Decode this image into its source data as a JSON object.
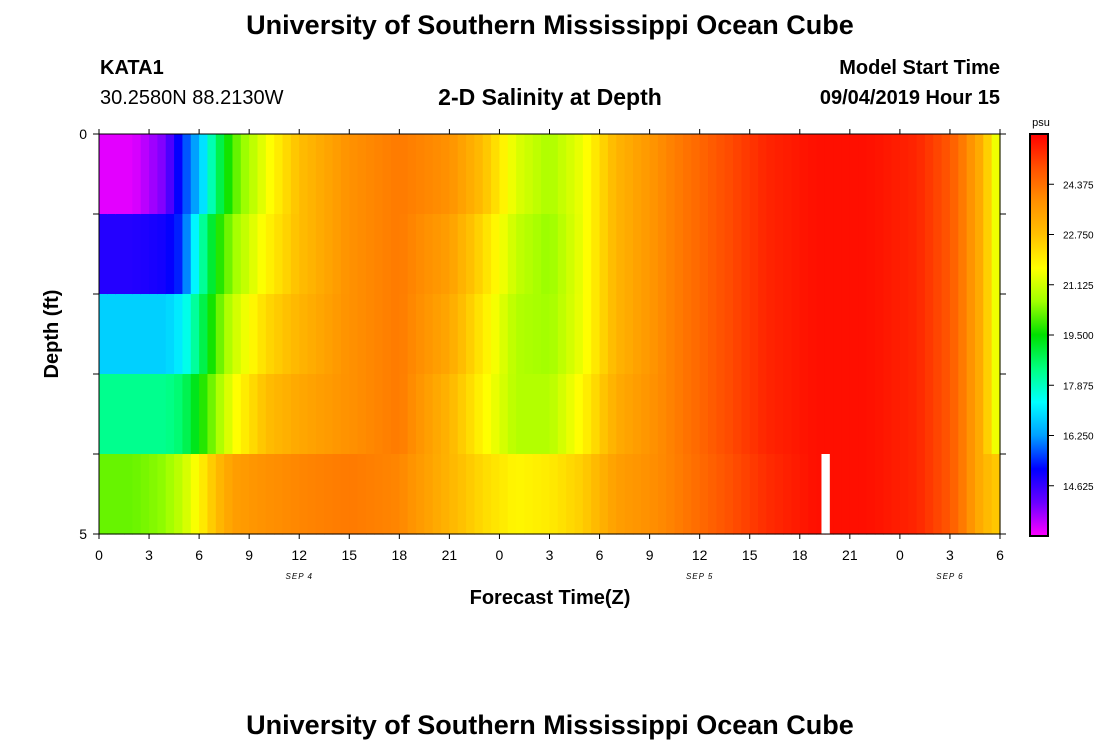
{
  "header": {
    "title": "University of Southern Mississippi Ocean Cube",
    "station_id": "KATA1",
    "coordinates": "30.2580N 88.2130W",
    "plot_title": "2-D Salinity at Depth",
    "model_label": "Model Start Time",
    "model_time": "09/04/2019 Hour 15"
  },
  "footer": {
    "title": "University of Southern Mississippi Ocean Cube"
  },
  "chart_data": {
    "type": "heatmap",
    "xlabel": "Forecast Time(Z)",
    "ylabel": "Depth (ft)",
    "x_tick_labels": [
      "0",
      "3",
      "6",
      "9",
      "12",
      "15",
      "18",
      "21",
      "0",
      "3",
      "6",
      "9",
      "12",
      "15",
      "18",
      "21",
      "0",
      "3",
      "6"
    ],
    "x_hours": [
      0,
      3,
      6,
      9,
      12,
      15,
      18,
      21,
      24,
      27,
      30,
      33,
      36,
      39,
      42,
      45,
      48,
      51,
      54
    ],
    "date_labels": [
      {
        "label": "SEP 4",
        "hour": 12
      },
      {
        "label": "SEP 5",
        "hour": 36
      },
      {
        "label": "SEP 6",
        "hour": 51
      }
    ],
    "y_tick_labels": [
      "0",
      "5"
    ],
    "ylim": [
      0,
      5
    ],
    "depth_layers": 5,
    "colorbar": {
      "unit": "psu",
      "range": [
        13.0,
        26.0
      ],
      "tick_labels": [
        "14.625",
        "16.250",
        "17.875",
        "19.500",
        "21.125",
        "22.750",
        "24.375"
      ],
      "colors": [
        "#ff00ff",
        "#6a00ff",
        "#0000ff",
        "#00a0ff",
        "#00ffff",
        "#00ff80",
        "#00e000",
        "#a0ff00",
        "#ffff00",
        "#ffc000",
        "#ff9000",
        "#ff5000",
        "#ff0000"
      ]
    },
    "series": [
      {
        "hour": 0,
        "values": [
          13.2,
          14.8,
          16.8,
          18.3,
          20.2
        ]
      },
      {
        "hour": 2,
        "values": [
          13.2,
          14.8,
          16.8,
          18.3,
          20.2
        ]
      },
      {
        "hour": 4,
        "values": [
          14.0,
          15.0,
          16.8,
          18.3,
          20.5
        ]
      },
      {
        "hour": 5,
        "values": [
          15.5,
          15.5,
          17.2,
          18.6,
          21.0
        ]
      },
      {
        "hour": 6,
        "values": [
          16.5,
          17.8,
          18.5,
          19.5,
          21.8
        ]
      },
      {
        "hour": 7,
        "values": [
          18.5,
          19.5,
          20.0,
          20.5,
          22.8
        ]
      },
      {
        "hour": 8,
        "values": [
          20.0,
          20.5,
          21.0,
          21.5,
          23.5
        ]
      },
      {
        "hour": 10,
        "values": [
          21.5,
          21.8,
          22.3,
          22.8,
          23.8
        ]
      },
      {
        "hour": 12,
        "values": [
          22.8,
          22.8,
          23.0,
          23.3,
          24.0
        ]
      },
      {
        "hour": 15,
        "values": [
          23.8,
          23.8,
          23.8,
          23.8,
          24.2
        ]
      },
      {
        "hour": 18,
        "values": [
          24.2,
          24.2,
          24.2,
          24.2,
          24.0
        ]
      },
      {
        "hour": 21,
        "values": [
          23.8,
          23.5,
          23.3,
          23.0,
          23.0
        ]
      },
      {
        "hour": 23,
        "values": [
          22.8,
          22.3,
          22.0,
          21.8,
          22.3
        ]
      },
      {
        "hour": 25,
        "values": [
          21.3,
          21.0,
          20.8,
          20.8,
          21.8
        ]
      },
      {
        "hour": 27,
        "values": [
          20.7,
          20.5,
          20.6,
          20.8,
          22.0
        ]
      },
      {
        "hour": 29,
        "values": [
          21.5,
          21.5,
          21.5,
          21.8,
          22.5
        ]
      },
      {
        "hour": 31,
        "values": [
          23.0,
          23.0,
          23.0,
          23.2,
          23.5
        ]
      },
      {
        "hour": 34,
        "values": [
          24.0,
          24.0,
          24.0,
          24.0,
          24.0
        ]
      },
      {
        "hour": 37,
        "values": [
          24.8,
          24.8,
          24.8,
          24.8,
          24.7
        ]
      },
      {
        "hour": 40,
        "values": [
          25.5,
          25.5,
          25.5,
          25.5,
          25.4
        ]
      },
      {
        "hour": 43,
        "values": [
          25.8,
          25.8,
          25.8,
          25.8,
          25.8
        ]
      },
      {
        "hour": 46,
        "values": [
          25.8,
          25.8,
          25.8,
          25.8,
          25.8
        ]
      },
      {
        "hour": 49,
        "values": [
          25.5,
          25.5,
          25.5,
          25.5,
          25.5
        ]
      },
      {
        "hour": 51,
        "values": [
          24.8,
          24.8,
          24.8,
          24.8,
          24.8
        ]
      },
      {
        "hour": 52,
        "values": [
          24.0,
          24.0,
          24.0,
          24.0,
          24.0
        ]
      },
      {
        "hour": 53,
        "values": [
          23.0,
          23.0,
          23.0,
          23.0,
          23.0
        ]
      },
      {
        "hour": 54,
        "values": [
          21.0,
          21.0,
          21.0,
          21.0,
          22.5
        ]
      }
    ],
    "missing_cells": [
      {
        "hour_start": 43.3,
        "hour_end": 43.8,
        "layer": 4
      }
    ]
  }
}
